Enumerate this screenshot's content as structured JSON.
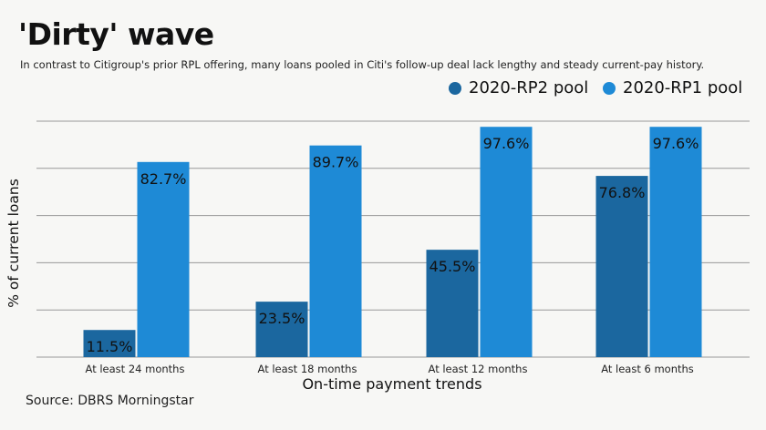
{
  "title": "'Dirty' wave",
  "subtitle": "In contrast to Citigroup's prior RPL offering, many loans pooled in Citi's follow-up deal lack lengthy and steady current-pay history.",
  "source": "Source: DBRS Morningstar",
  "colors": {
    "rp2": "#1b679f",
    "rp1": "#1e8ad6",
    "grid": "#999999"
  },
  "chart_data": {
    "type": "bar",
    "categories": [
      "At least 24 months",
      "At least 18 months",
      "At least 12 months",
      "At least 6 months"
    ],
    "series": [
      {
        "name": "2020-RP2 pool",
        "values": [
          11.5,
          23.5,
          45.5,
          76.8
        ],
        "labels": [
          "11.5%",
          "23.5%",
          "45.5%",
          "76.8%"
        ]
      },
      {
        "name": "2020-RP1 pool",
        "values": [
          82.7,
          89.7,
          97.6,
          97.6
        ],
        "labels": [
          "82.7%",
          "89.7%",
          "97.6%",
          "97.6%"
        ]
      }
    ],
    "xlabel": "On-time payment trends",
    "ylabel": "% of current loans",
    "ylim": [
      0,
      100
    ],
    "grid": true,
    "legend": "top-right"
  }
}
